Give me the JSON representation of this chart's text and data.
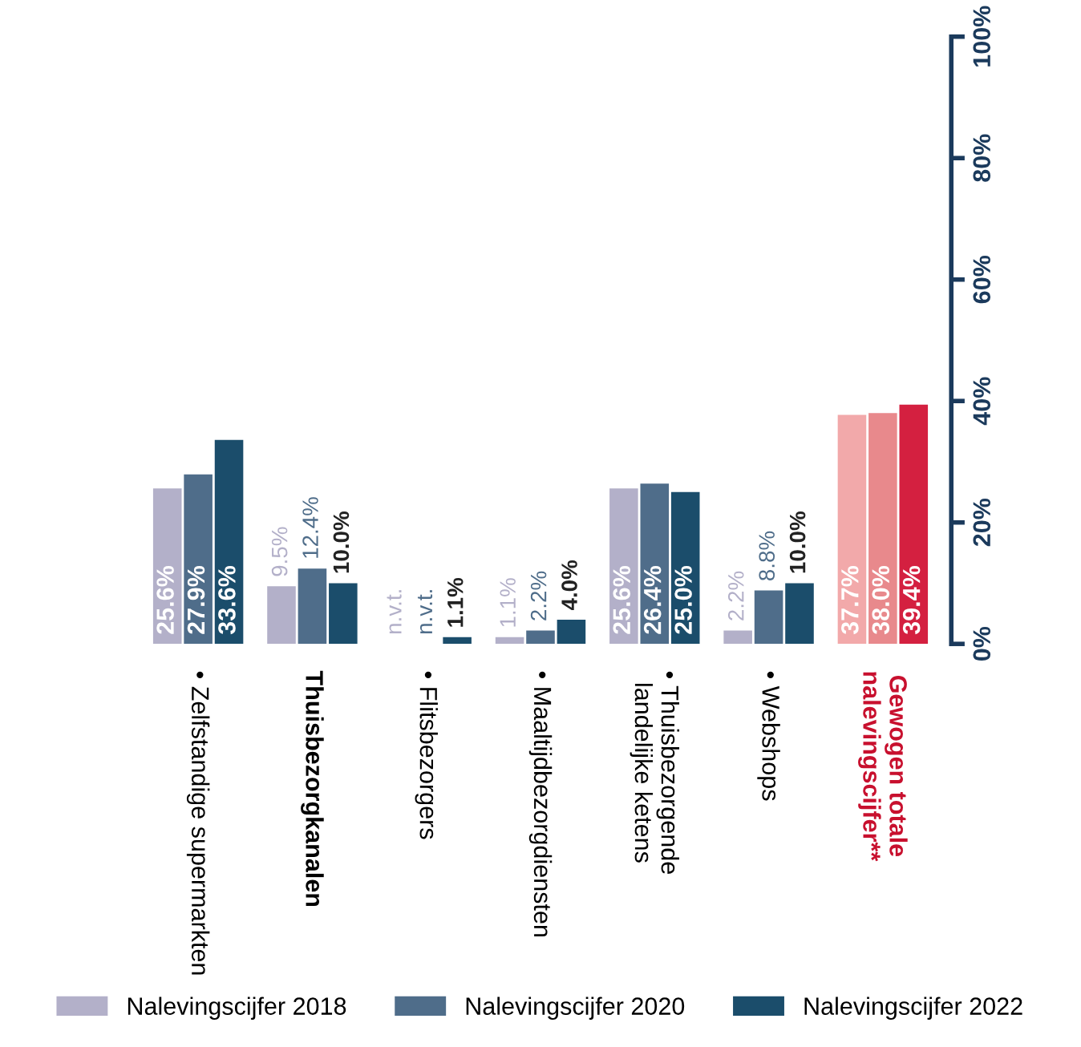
{
  "chart_data": {
    "type": "bar",
    "categories": [
      "• Zelfstandige supermarkten",
      "Thuisbezorgkanalen",
      "• Flitsbezorgers",
      "• Maaltijdbezorgdiensten",
      "• Thuisbezorgende\nlandelijke ketens",
      "• Webshops",
      "Gewogen totale\nnalevingscijfer**"
    ],
    "series": [
      {
        "name": "Nalevingscijfer 2018",
        "color": "#b3b0c9",
        "colors": [
          "#b3b0c9",
          "#b3b0c9",
          "#b3b0c9",
          "#b3b0c9",
          "#b3b0c9",
          "#b3b0c9",
          "#f2a9aa"
        ],
        "values": [
          25.6,
          9.5,
          null,
          1.1,
          25.6,
          2.2,
          37.7
        ],
        "value_labels": [
          "25.6%",
          "9.5%",
          "n.v.t.",
          "1.1%",
          "25.6%",
          "2.2%",
          "37.7%"
        ]
      },
      {
        "name": "Nalevingscijfer 2020",
        "color": "#4f6d8a",
        "colors": [
          "#4f6d8a",
          "#4f6d8a",
          "#4f6d8a",
          "#4f6d8a",
          "#4f6d8a",
          "#4f6d8a",
          "#e8898c"
        ],
        "values": [
          27.9,
          12.4,
          null,
          2.2,
          26.4,
          8.8,
          38.0
        ],
        "value_labels": [
          "27.9%",
          "12.4%",
          "n.v.t.",
          "2.2%",
          "26.4%",
          "8.8%",
          "38.0%"
        ]
      },
      {
        "name": "Nalevingscijfer 2022",
        "color": "#1b4d6b",
        "colors": [
          "#1b4d6b",
          "#1b4d6b",
          "#1b4d6b",
          "#1b4d6b",
          "#1b4d6b",
          "#1b4d6b",
          "#d42040"
        ],
        "values": [
          33.6,
          10.0,
          1.1,
          4.0,
          25.0,
          10.0,
          39.4
        ],
        "value_labels": [
          "33.6%",
          "10.0%",
          "1.1%",
          "4.0%",
          "25.0%",
          "10.0%",
          "39.4%"
        ]
      }
    ],
    "ylim": [
      0,
      100
    ],
    "yticks": [
      {
        "value": 0,
        "label": "0%"
      },
      {
        "value": 20,
        "label": "20%"
      },
      {
        "value": 40,
        "label": "40%"
      },
      {
        "value": 60,
        "label": "60%"
      },
      {
        "value": 80,
        "label": "80%"
      },
      {
        "value": 100,
        "label": "100%"
      }
    ],
    "grid": false,
    "legend": "bottom"
  }
}
